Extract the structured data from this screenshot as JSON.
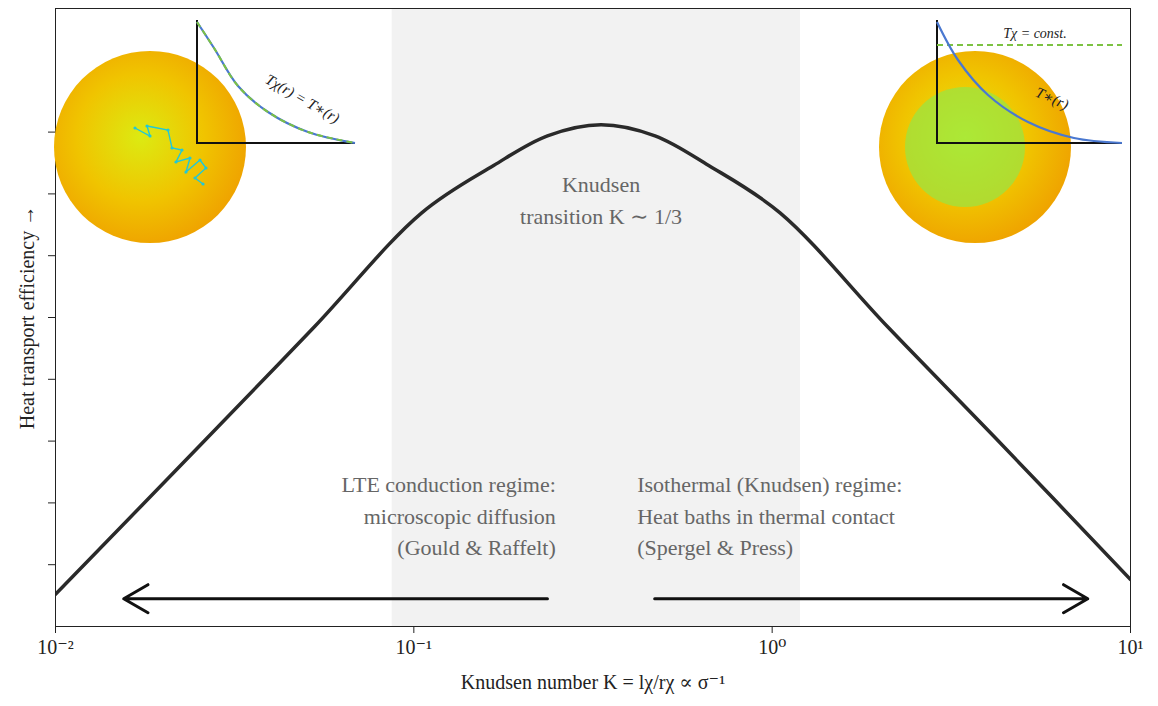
{
  "chart_data": {
    "type": "line",
    "x_label": "Knudsen number K = lχ/rχ ∝ σ⁻¹",
    "y_label": "Heat transport efficiency →",
    "log": "x",
    "xlim": [
      0.01,
      10
    ],
    "xticks": [
      {
        "value": 0.01,
        "label": "10⁻²"
      },
      {
        "value": 0.1,
        "label": "10⁻¹"
      },
      {
        "value": 1,
        "label": "10⁰"
      },
      {
        "value": 10,
        "label": "10¹"
      }
    ],
    "ylim": [
      0,
      1
    ],
    "yticks": [
      0.1,
      0.2,
      0.3,
      0.4,
      0.5,
      0.6,
      0.7,
      0.8
    ],
    "tick_labels": "x",
    "grid": false,
    "x": [
      0.01,
      0.0265,
      0.0528,
      0.105,
      0.167,
      0.236,
      0.333,
      0.471,
      0.665,
      1.054,
      2.1,
      4.2,
      10
    ],
    "values": [
      0.052,
      0.305,
      0.485,
      0.669,
      0.746,
      0.794,
      0.812,
      0.794,
      0.746,
      0.669,
      0.485,
      0.305,
      0.076
    ],
    "color": "#2a2a2a",
    "shaded_region": [
      0.087,
      1.2
    ],
    "annotations": [
      {
        "lines": [
          "Knudsen",
          "transition K ∼ 1/3"
        ],
        "x": 0.333,
        "y": 0.694,
        "align": "middle"
      },
      {
        "lines": [
          "LTE conduction regime:",
          "microscopic diffusion",
          "(Gould & Raffelt)"
        ],
        "x": 0.249,
        "y": 0.183,
        "align": "end"
      },
      {
        "lines": [
          "Isothermal (Knudsen) regime:",
          "Heat baths in thermal contact",
          "(Spergel & Press)"
        ],
        "x": 0.42,
        "y": 0.183,
        "align": "start"
      }
    ],
    "arrows": [
      {
        "from": 0.236,
        "to": 0.0155,
        "y": 0.045
      },
      {
        "from": 0.47,
        "to": 7.6,
        "y": 0.045
      }
    ],
    "insets": [
      {
        "labels": [
          "Tχ(r) = T∗(r)"
        ]
      },
      {
        "labels": [
          "Tχ = const.",
          "T∗(r)"
        ]
      }
    ]
  }
}
